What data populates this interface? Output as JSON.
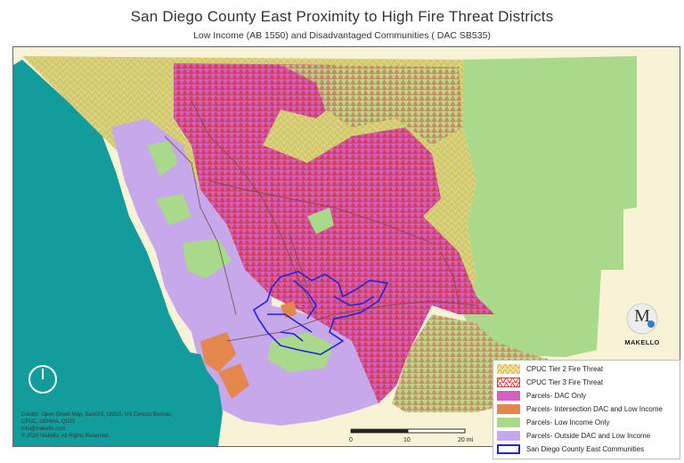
{
  "header": {
    "title": "San Diego County East Proximity to High Fire Threat Districts",
    "subtitle": "Low Income (AB 1550) and Disadvantaged Communities ( DAC SB535)"
  },
  "colors": {
    "ocean": "#139c9c",
    "background_land": "#f8f3d6",
    "tier2_fill": "#c9d27a",
    "tier2_hatch": "#e8b84a",
    "tier3_hatch": "#d63a3a",
    "dac_only": "#d35fc0",
    "intersection": "#e3874c",
    "low_income": "#a9d98a",
    "outside_dac_low_income": "#c7a8ea",
    "east_communities_outline": "#2222dd",
    "roads": "#6b4b3e"
  },
  "legend": {
    "items": [
      {
        "label": "CPUC Tier 2 Fire Threat",
        "swatch": "tier2"
      },
      {
        "label": "CPUC Tier 3 Fire Threat",
        "swatch": "tier3"
      },
      {
        "label": "Parcels- DAC Only",
        "swatch": "dac"
      },
      {
        "label": "Parcels- Intersection DAC and Low Income",
        "swatch": "intersection"
      },
      {
        "label": "Parcels- Low Income Only",
        "swatch": "lowincome"
      },
      {
        "label": "Parcels- Outside DAC and Low Income",
        "swatch": "outside"
      },
      {
        "label": "San Diego County East Communities",
        "swatch": "outline"
      }
    ]
  },
  "scale": {
    "labels": [
      "0",
      "10",
      "20 mi"
    ]
  },
  "credits": {
    "lines": [
      "Credits: Open Street Map, SanGIS, USGS, US Census Bureau,",
      "CPUC, OEHHA, QGIS",
      "info@makello.com",
      "© 2020 Makello. All Rights Reserved."
    ]
  },
  "logo": {
    "letter": "M",
    "name": "MAKELLO"
  },
  "icons": {
    "north_arrow": "north-arrow-icon",
    "logo": "makello-logo-icon"
  }
}
